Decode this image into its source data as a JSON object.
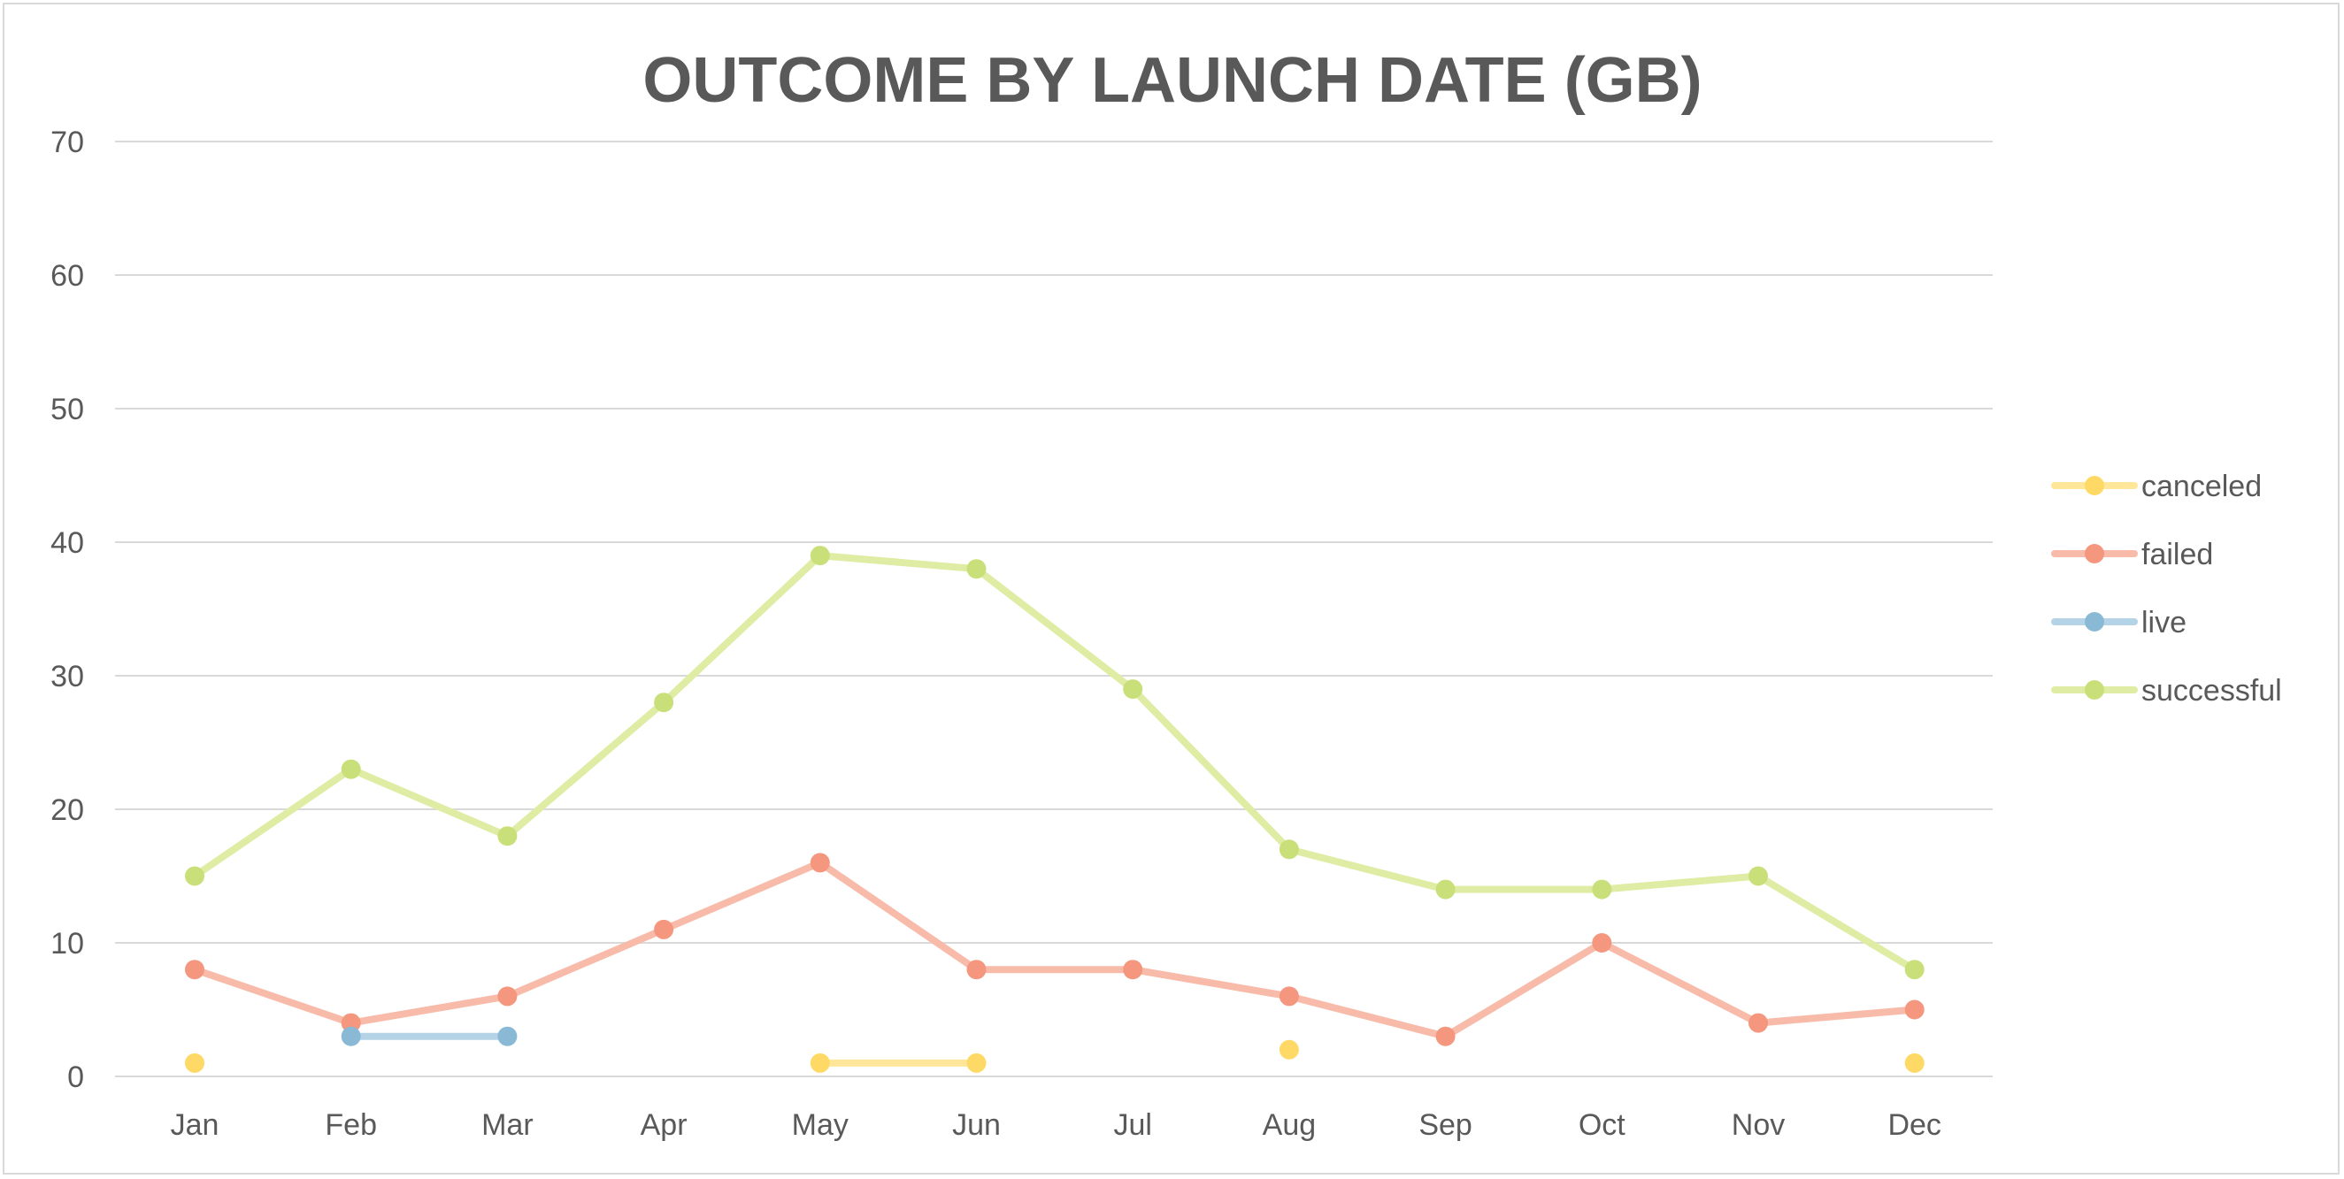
{
  "chart_data": {
    "type": "line",
    "title": "OUTCOME BY LAUNCH DATE (GB)",
    "xlabel": "",
    "ylabel": "",
    "categories": [
      "Jan",
      "Feb",
      "Mar",
      "Apr",
      "May",
      "Jun",
      "Jul",
      "Aug",
      "Sep",
      "Oct",
      "Nov",
      "Dec"
    ],
    "ylim": [
      0,
      70
    ],
    "yticks": [
      "0",
      "10",
      "20",
      "30",
      "40",
      "50",
      "60",
      "70"
    ],
    "grid": true,
    "legend_position": "right",
    "series": [
      {
        "name": "canceled",
        "color": "#ffd966",
        "line_color": "#ffe699",
        "values": [
          1,
          null,
          null,
          null,
          1,
          1,
          null,
          2,
          null,
          null,
          null,
          1
        ]
      },
      {
        "name": "failed",
        "color": "#f4977e",
        "line_color": "#f8bba9",
        "values": [
          8,
          4,
          6,
          11,
          16,
          8,
          8,
          6,
          3,
          10,
          4,
          5
        ]
      },
      {
        "name": "live",
        "color": "#8ab9d6",
        "line_color": "#b4d3e6",
        "values": [
          null,
          3,
          3,
          null,
          null,
          null,
          null,
          null,
          null,
          null,
          null,
          null
        ]
      },
      {
        "name": "successful",
        "color": "#c9e07a",
        "line_color": "#dfeca4",
        "values": [
          15,
          23,
          18,
          28,
          39,
          38,
          29,
          17,
          14,
          14,
          15,
          8
        ]
      }
    ]
  }
}
